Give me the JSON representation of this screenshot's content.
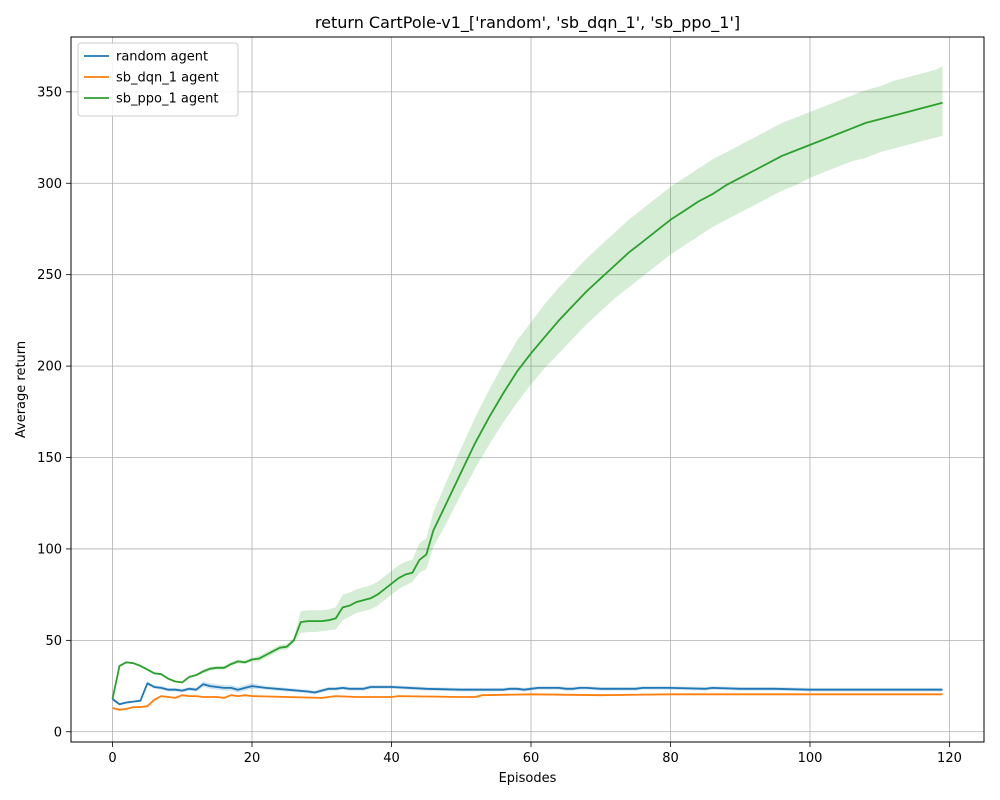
{
  "chart_data": {
    "type": "line",
    "title": "return CartPole-v1_['random', 'sb_dqn_1', 'sb_ppo_1']",
    "xlabel": "Episodes",
    "ylabel": "Average return",
    "xlim": [
      -5.95,
      124.95
    ],
    "ylim": [
      -5.6,
      380
    ],
    "xticks": [
      0,
      20,
      40,
      60,
      80,
      100,
      120
    ],
    "yticks": [
      0,
      50,
      100,
      150,
      200,
      250,
      300,
      350
    ],
    "grid": true,
    "legend_position": "top-left",
    "series": [
      {
        "name": "random agent",
        "color": "#1f77b4",
        "x": [
          0,
          1,
          2,
          3,
          4,
          5,
          6,
          7,
          8,
          9,
          10,
          11,
          12,
          13,
          14,
          15,
          16,
          17,
          18,
          19,
          20,
          22,
          25,
          28,
          29,
          30,
          31,
          32,
          33,
          34,
          35,
          36,
          37,
          40,
          45,
          50,
          55,
          56,
          57,
          58,
          59,
          60,
          61,
          62,
          63,
          64,
          65,
          66,
          67,
          68,
          70,
          75,
          76,
          77,
          78,
          79,
          80,
          85,
          86,
          90,
          95,
          100,
          105,
          110,
          115,
          119
        ],
        "y": [
          18,
          15,
          16,
          16.5,
          17,
          26.5,
          24.5,
          24,
          23,
          23,
          22.5,
          23.5,
          23,
          26,
          25,
          24.5,
          24,
          24,
          23,
          24,
          25,
          24,
          23,
          22,
          21.5,
          22.5,
          23.5,
          23.5,
          24,
          23.5,
          23.5,
          23.5,
          24.5,
          24.5,
          23.5,
          23,
          23,
          23,
          23.5,
          23.5,
          23,
          23.5,
          24,
          24,
          24,
          24,
          23.5,
          23.5,
          24,
          24,
          23.5,
          23.5,
          24,
          24,
          24,
          24,
          24,
          23.5,
          24,
          23.5,
          23.5,
          23,
          23,
          23,
          23,
          23
        ],
        "band_lower": [
          17,
          14.5,
          15.5,
          16,
          16.5,
          25.5,
          23.5,
          23,
          22,
          22,
          21.5,
          22.5,
          22,
          24.5,
          23.5,
          23,
          22.5,
          22.5,
          21.5,
          22.5,
          23.5,
          23,
          22,
          21,
          20.5,
          21.5,
          22.5,
          22.5,
          23,
          22.5,
          22.5,
          22.5,
          23.5,
          23.5,
          22.5,
          22,
          22,
          22,
          22.5,
          22.5,
          22,
          22.5,
          23,
          23,
          23,
          23,
          22.5,
          22.5,
          23,
          23,
          22.5,
          22.5,
          23,
          23,
          23,
          23,
          23,
          22.5,
          23,
          22.5,
          22.5,
          22,
          22,
          22,
          22,
          22
        ],
        "band_upper": [
          19,
          15.5,
          16.5,
          17,
          17.5,
          27.5,
          25.5,
          25,
          24,
          24,
          23.5,
          24.5,
          24,
          27.5,
          26.5,
          26,
          25.5,
          25.5,
          24.5,
          25.5,
          26.5,
          25,
          24,
          23,
          22.5,
          23.5,
          24.5,
          24.5,
          25,
          24.5,
          24.5,
          24.5,
          25.5,
          25.5,
          24.5,
          24,
          24,
          24,
          24.5,
          24.5,
          24,
          24.5,
          25,
          25,
          25,
          25,
          24.5,
          24.5,
          25,
          25,
          24.5,
          24.5,
          25,
          25,
          25,
          25,
          25,
          24.5,
          25,
          24.5,
          24.5,
          24,
          24,
          24,
          24,
          24
        ]
      },
      {
        "name": "sb_dqn_1 agent",
        "color": "#ff7f0e",
        "x": [
          0,
          1,
          2,
          3,
          4,
          5,
          6,
          7,
          8,
          9,
          10,
          11,
          12,
          13,
          14,
          15,
          16,
          17,
          18,
          19,
          20,
          25,
          30,
          32,
          35,
          40,
          41,
          50,
          52,
          53,
          60,
          70,
          80,
          90,
          100,
          110,
          119
        ],
        "y": [
          13,
          12,
          12.5,
          13.5,
          13.5,
          14,
          17.5,
          19.5,
          19,
          18.5,
          20,
          19.5,
          19.5,
          19,
          19,
          19,
          18.5,
          20,
          19.5,
          20,
          19.5,
          19,
          18.5,
          19.5,
          19,
          19,
          19.5,
          19,
          19,
          20,
          20.5,
          20,
          20.5,
          20.5,
          20.5,
          20.5,
          20.5
        ],
        "band_lower": [
          12.5,
          11.5,
          12,
          13,
          13,
          13.5,
          17,
          19,
          18.5,
          18,
          19.5,
          19,
          19,
          18.5,
          18.5,
          18.5,
          18,
          19.5,
          19,
          19.5,
          19,
          18.5,
          18,
          19,
          18.5,
          18.5,
          19,
          18.5,
          18.5,
          19.5,
          20,
          19.5,
          20,
          20,
          20,
          20,
          20
        ],
        "band_upper": [
          13.5,
          12.5,
          13,
          14,
          14,
          14.5,
          18,
          20,
          19.5,
          19,
          20.5,
          20,
          20,
          19.5,
          19.5,
          19.5,
          19,
          20.5,
          20,
          20.5,
          20,
          19.5,
          19,
          20,
          19.5,
          19.5,
          20,
          19.5,
          19.5,
          20.5,
          21,
          20.5,
          21,
          21,
          21,
          21,
          21
        ]
      },
      {
        "name": "sb_ppo_1 agent",
        "color": "#2ca02c",
        "band_color": "#2ca02c",
        "x": [
          0,
          1,
          2,
          3,
          4,
          5,
          6,
          7,
          8,
          9,
          10,
          11,
          12,
          13,
          14,
          15,
          16,
          17,
          18,
          19,
          20,
          21,
          22,
          23,
          24,
          25,
          26,
          27,
          28,
          29,
          30,
          31,
          32,
          33,
          34,
          35,
          36,
          37,
          38,
          39,
          40,
          41,
          42,
          43,
          44,
          45,
          46,
          48,
          50,
          52,
          54,
          56,
          58,
          60,
          62,
          64,
          66,
          68,
          70,
          72,
          74,
          76,
          78,
          80,
          82,
          84,
          86,
          88,
          90,
          92,
          94,
          96,
          98,
          100,
          102,
          104,
          106,
          108,
          110,
          112,
          114,
          116,
          118,
          119
        ],
        "y": [
          18,
          36,
          38,
          37.5,
          36,
          34,
          32,
          31.5,
          29,
          27.5,
          27,
          30,
          31,
          33,
          34.5,
          35,
          35,
          37,
          38.5,
          38,
          39.5,
          40,
          42,
          44,
          46,
          46.5,
          50,
          60,
          60.5,
          60.5,
          60.5,
          61,
          62,
          68,
          69,
          71,
          72,
          73,
          75,
          78,
          81,
          84,
          86,
          87,
          94,
          97,
          110,
          126,
          142,
          158,
          172,
          185,
          197,
          207,
          216,
          225,
          233,
          241,
          248,
          255,
          262,
          268,
          274,
          280,
          285,
          290,
          294,
          299,
          303,
          307,
          311,
          315,
          318,
          321,
          324,
          327,
          330,
          333,
          335,
          337,
          339,
          341,
          343,
          344
        ],
        "band_lower": [
          17,
          35.5,
          37.5,
          37,
          35.5,
          33.5,
          31.5,
          31,
          28.5,
          27,
          26.5,
          29.5,
          30.5,
          32,
          33.5,
          34,
          34,
          36,
          37.5,
          37,
          38.5,
          38.5,
          40.5,
          42.5,
          44.5,
          45,
          48.5,
          54,
          54.5,
          54.5,
          55,
          55.5,
          56,
          61,
          63,
          65,
          66,
          67,
          69,
          72,
          75,
          78,
          80,
          82,
          87,
          89,
          101,
          115,
          130,
          144,
          157,
          169,
          180,
          190,
          199,
          207,
          215,
          223,
          230,
          237,
          243,
          249,
          255,
          261,
          266,
          271,
          276,
          280,
          284,
          288,
          292,
          296,
          299,
          303,
          306,
          309,
          312,
          314,
          317,
          319,
          321,
          323,
          325,
          326
        ],
        "band_upper": [
          19,
          36.5,
          38.5,
          38,
          36.5,
          34.5,
          32.5,
          32,
          29.5,
          28,
          27.5,
          30.5,
          31.5,
          34,
          35.5,
          36,
          36,
          38,
          39.5,
          39,
          40.5,
          41.5,
          43.5,
          45.5,
          47.5,
          48,
          51.5,
          66,
          66.5,
          66.5,
          66.5,
          67,
          68,
          75,
          76,
          78,
          79,
          80,
          82,
          85,
          88,
          91,
          93,
          94,
          103,
          106,
          120,
          138,
          155,
          172,
          187,
          201,
          214,
          224,
          234,
          243,
          251,
          259,
          266,
          273,
          280,
          286,
          292,
          298,
          303,
          308,
          313,
          317,
          321,
          325,
          329,
          333,
          336,
          339,
          342,
          345,
          348,
          351,
          353,
          356,
          358,
          360,
          362,
          364
        ]
      }
    ]
  }
}
